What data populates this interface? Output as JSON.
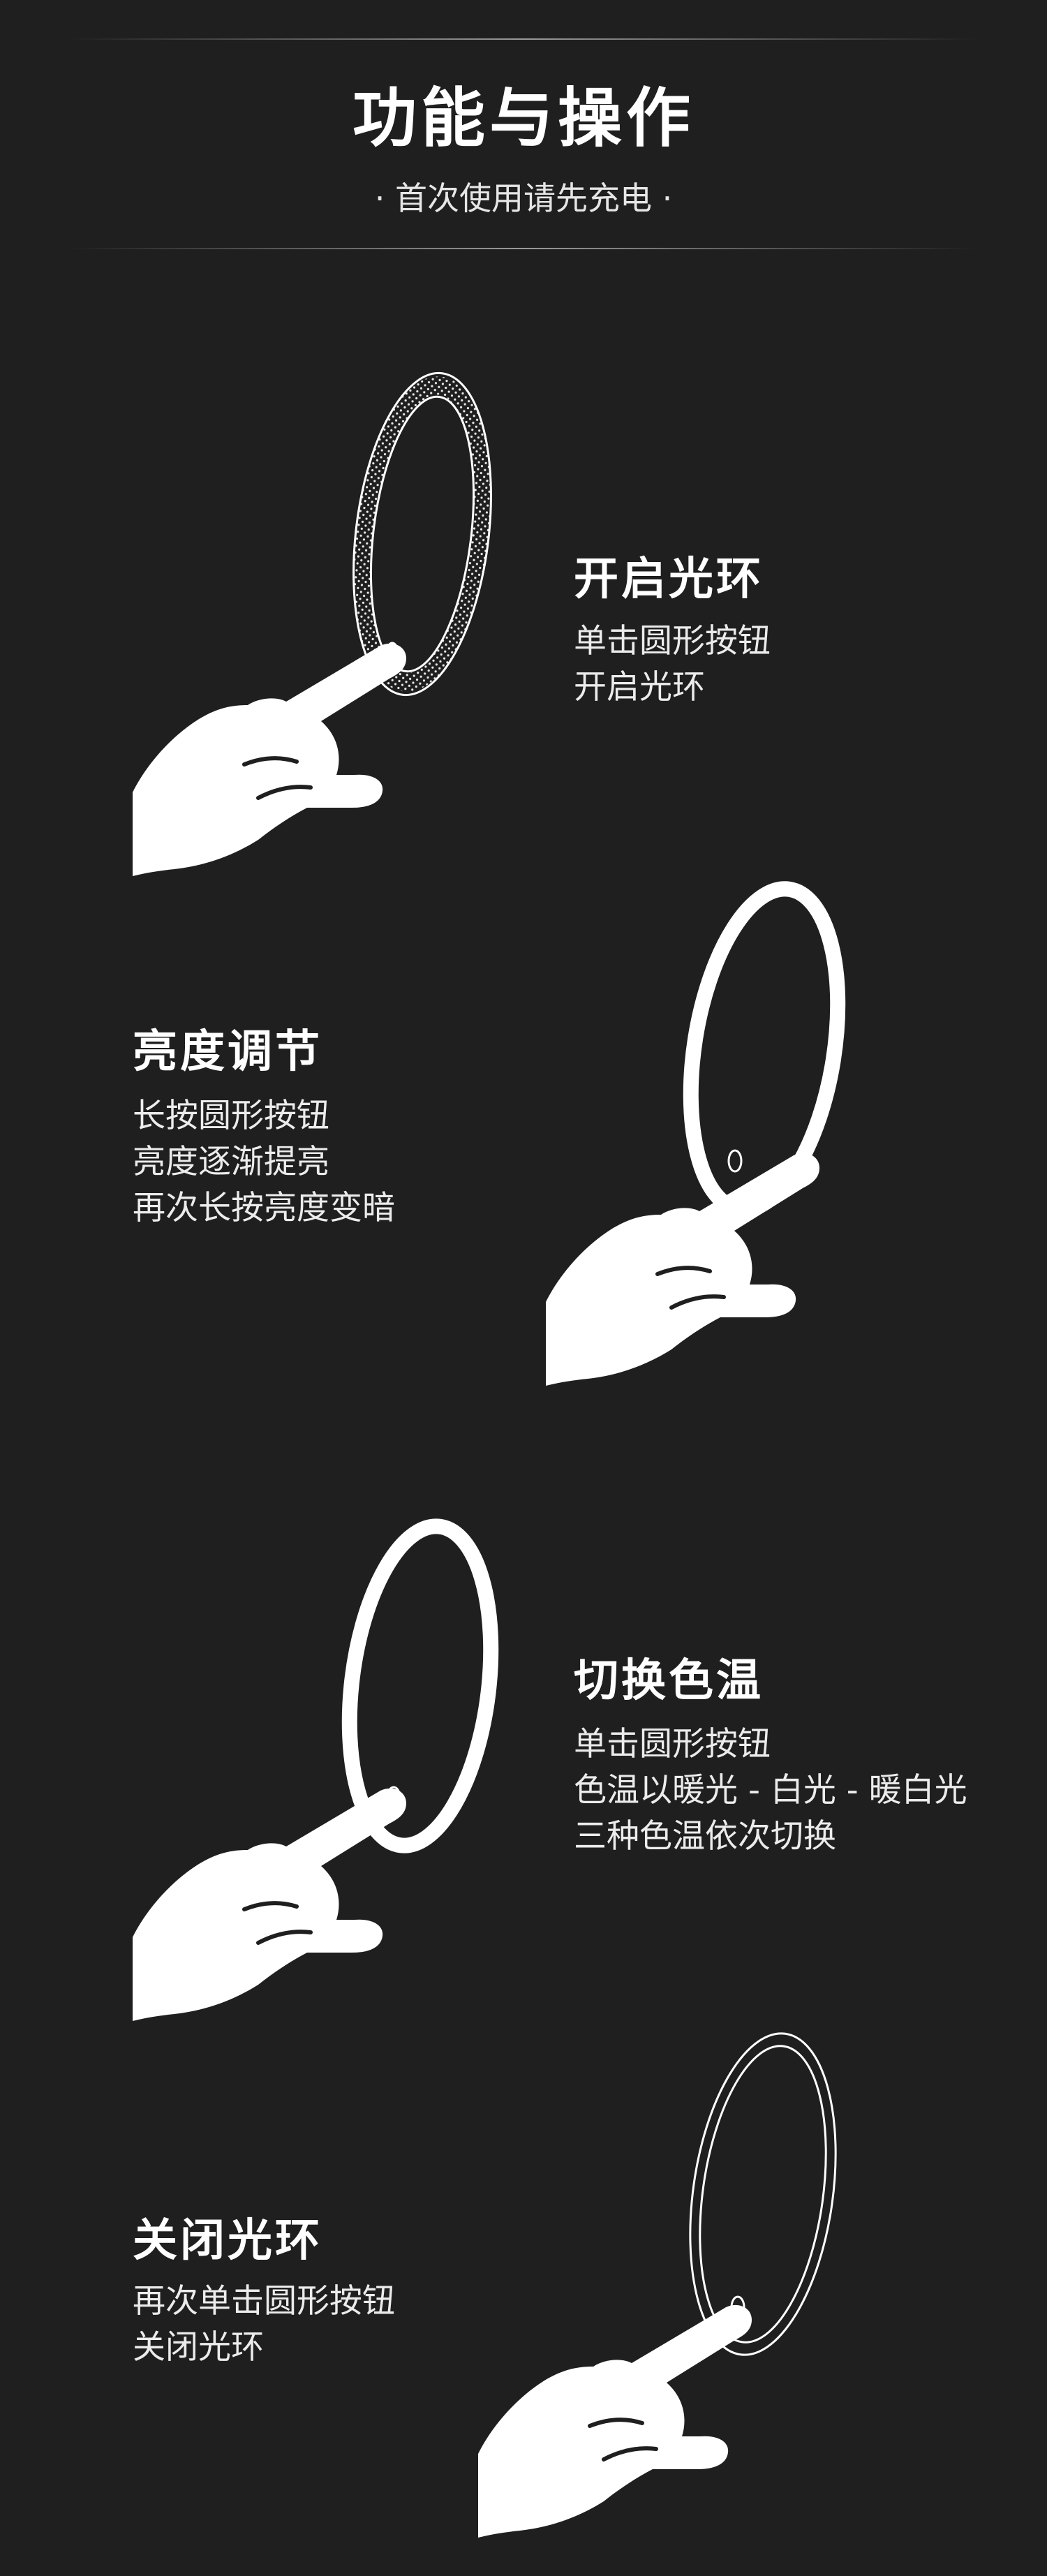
{
  "header": {
    "title": "功能与操作",
    "subtitle": "· 首次使用请先充电 ·"
  },
  "sections": [
    {
      "title": "开启光环",
      "lines": [
        "单击圆形按钮",
        "开启光环"
      ],
      "mirror_state": "off-dotted",
      "icon": "hand-pointing-icon"
    },
    {
      "title": "亮度调节",
      "lines": [
        "长按圆形按钮",
        "亮度逐渐提亮",
        "再次长按亮度变暗"
      ],
      "mirror_state": "on",
      "icon": "hand-pointing-icon"
    },
    {
      "title": "切换色温",
      "lines": [
        "单击圆形按钮",
        "色温以暖光 - 白光 - 暖白光",
        "三种色温依次切换"
      ],
      "mirror_state": "on",
      "icon": "hand-pointing-icon"
    },
    {
      "title": "关闭光环",
      "lines": [
        "再次单击圆形按钮",
        "关闭光环"
      ],
      "mirror_state": "off-outline",
      "icon": "hand-pointing-icon"
    }
  ],
  "colors": {
    "background": "#1f1f1f",
    "foreground": "#ffffff"
  }
}
